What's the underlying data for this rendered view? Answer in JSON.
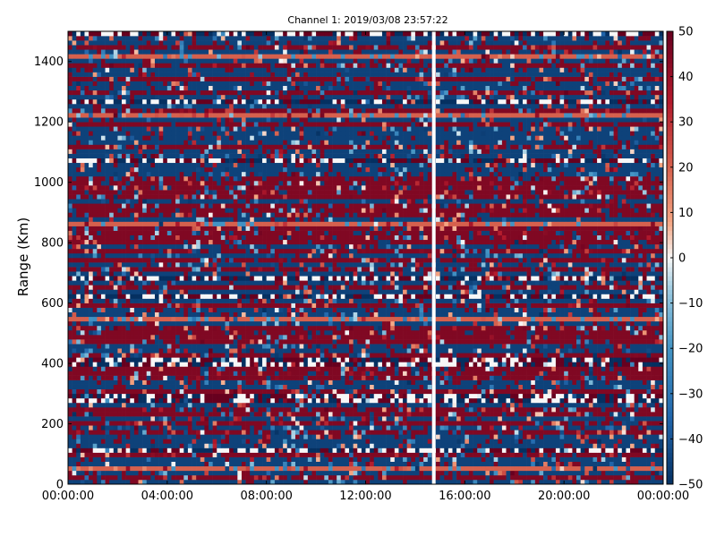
{
  "chart_data": {
    "type": "heatmap",
    "title": "Channel 1: 2019/03/08 23:57:22",
    "ylabel": "Range (Km)",
    "xlabel": "",
    "x_ticks": [
      "00:00:00",
      "04:00:00",
      "08:00:00",
      "12:00:00",
      "16:00:00",
      "20:00:00",
      "00:00:00"
    ],
    "x_range_hours": [
      0,
      24
    ],
    "y_ticks": [
      0,
      200,
      400,
      600,
      800,
      1000,
      1200,
      1400
    ],
    "ylim": [
      0,
      1500
    ],
    "colorbar": {
      "ticks": [
        50,
        40,
        30,
        20,
        10,
        0,
        -10,
        -20,
        -30,
        -40,
        -50
      ],
      "range": [
        -50,
        50
      ],
      "colormap": "diverging-blue-white-red",
      "low_color": "#053061",
      "mid_color": "#f7f7f7",
      "high_color": "#67001f"
    },
    "data_gap_hour": 14.75,
    "description_note": "",
    "range_bin_km": 15,
    "time_bin_minutes": 10,
    "values_summary": "Values saturate at +50 (dark red) and -50 (dark blue) with alternating horizontal range bands; a vertical data gap near 14:45."
  }
}
